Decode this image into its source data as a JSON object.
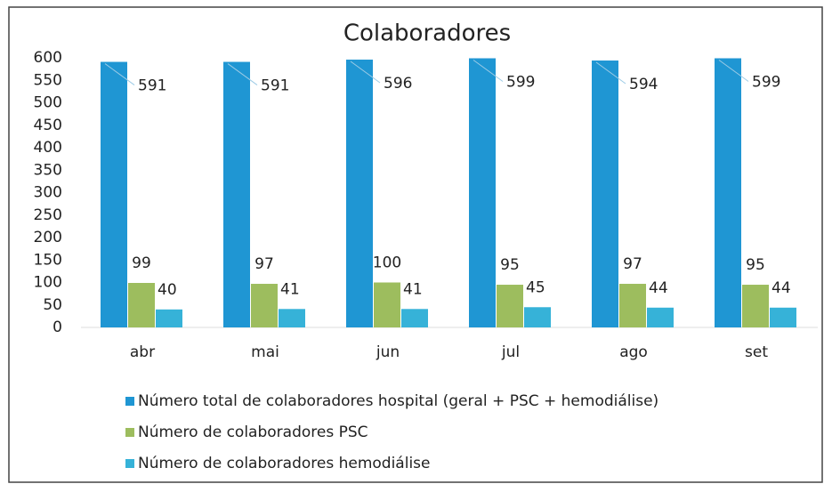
{
  "chart_data": {
    "type": "bar",
    "title": "Colaboradores",
    "categories": [
      "abr",
      "mai",
      "jun",
      "jul",
      "ago",
      "set"
    ],
    "series": [
      {
        "name": "Número total de colaboradores hospital (geral + PSC + hemodiálise)",
        "color": "#1f96d3",
        "values": [
          591,
          591,
          596,
          599,
          594,
          599
        ]
      },
      {
        "name": "Número de colaboradores PSC",
        "color": "#9dbd5e",
        "values": [
          99,
          97,
          100,
          95,
          97,
          95
        ]
      },
      {
        "name": "Número de colaboradores hemodiálise",
        "color": "#36b2d8",
        "values": [
          40,
          41,
          41,
          45,
          44,
          44
        ]
      }
    ],
    "ylim": [
      0,
      600
    ],
    "yticks": [
      0,
      50,
      100,
      150,
      200,
      250,
      300,
      350,
      400,
      450,
      500,
      550,
      600
    ],
    "grid": false,
    "legend": "bottom"
  }
}
